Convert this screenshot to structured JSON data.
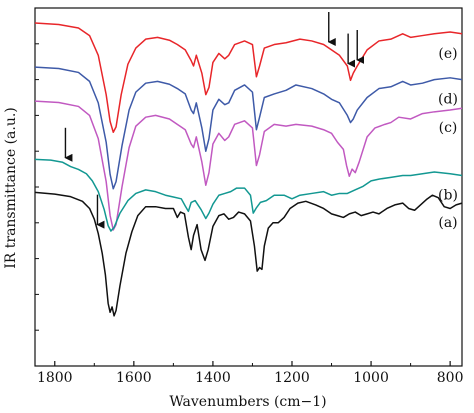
{
  "chart_data": {
    "type": "line",
    "title": "",
    "xlabel": "Wavenumbers (cm−1)",
    "ylabel": "IR transmittance (a.u.)",
    "xlim": [
      1850,
      770
    ],
    "x_reversed": true,
    "ylim": [
      0,
      1
    ],
    "grid": false,
    "xticks": [
      {
        "value": 1800,
        "label": "1800"
      },
      {
        "value": 1600,
        "label": "1600"
      },
      {
        "value": 1400,
        "label": "1400"
      },
      {
        "value": 1200,
        "label": "1200"
      },
      {
        "value": 1000,
        "label": "1000"
      },
      {
        "value": 800,
        "label": "800"
      }
    ],
    "series": [
      {
        "name": "(e)",
        "color": "#e8262a",
        "baseline": 0.958,
        "points": [
          [
            1850,
            0.0
          ],
          [
            1790,
            0.004
          ],
          [
            1740,
            0.014
          ],
          [
            1712,
            0.035
          ],
          [
            1690,
            0.09
          ],
          [
            1670,
            0.2
          ],
          [
            1660,
            0.275
          ],
          [
            1652,
            0.305
          ],
          [
            1645,
            0.29
          ],
          [
            1632,
            0.2
          ],
          [
            1615,
            0.115
          ],
          [
            1595,
            0.07
          ],
          [
            1570,
            0.045
          ],
          [
            1540,
            0.04
          ],
          [
            1510,
            0.048
          ],
          [
            1490,
            0.06
          ],
          [
            1470,
            0.075
          ],
          [
            1455,
            0.105
          ],
          [
            1449,
            0.12
          ],
          [
            1442,
            0.09
          ],
          [
            1428,
            0.14
          ],
          [
            1418,
            0.2
          ],
          [
            1410,
            0.18
          ],
          [
            1400,
            0.11
          ],
          [
            1385,
            0.085
          ],
          [
            1370,
            0.1
          ],
          [
            1360,
            0.09
          ],
          [
            1345,
            0.06
          ],
          [
            1320,
            0.05
          ],
          [
            1300,
            0.06
          ],
          [
            1290,
            0.15
          ],
          [
            1282,
            0.12
          ],
          [
            1270,
            0.07
          ],
          [
            1245,
            0.06
          ],
          [
            1215,
            0.055
          ],
          [
            1180,
            0.045
          ],
          [
            1150,
            0.05
          ],
          [
            1120,
            0.06
          ],
          [
            1100,
            0.075
          ],
          [
            1080,
            0.09
          ],
          [
            1060,
            0.12
          ],
          [
            1052,
            0.16
          ],
          [
            1045,
            0.14
          ],
          [
            1035,
            0.12
          ],
          [
            1010,
            0.075
          ],
          [
            980,
            0.05
          ],
          [
            950,
            0.045
          ],
          [
            920,
            0.03
          ],
          [
            900,
            0.04
          ],
          [
            870,
            0.035
          ],
          [
            840,
            0.03
          ],
          [
            800,
            0.025
          ],
          [
            770,
            0.03
          ]
        ]
      },
      {
        "name": "(d)",
        "color": "#3e5aa8",
        "baseline": 0.835,
        "points": [
          [
            1850,
            0.0
          ],
          [
            1790,
            0.004
          ],
          [
            1740,
            0.015
          ],
          [
            1712,
            0.04
          ],
          [
            1690,
            0.1
          ],
          [
            1670,
            0.21
          ],
          [
            1660,
            0.3
          ],
          [
            1652,
            0.34
          ],
          [
            1645,
            0.32
          ],
          [
            1630,
            0.22
          ],
          [
            1612,
            0.12
          ],
          [
            1595,
            0.07
          ],
          [
            1570,
            0.045
          ],
          [
            1540,
            0.04
          ],
          [
            1510,
            0.048
          ],
          [
            1490,
            0.06
          ],
          [
            1470,
            0.075
          ],
          [
            1455,
            0.12
          ],
          [
            1449,
            0.13
          ],
          [
            1442,
            0.1
          ],
          [
            1428,
            0.17
          ],
          [
            1418,
            0.235
          ],
          [
            1410,
            0.2
          ],
          [
            1400,
            0.12
          ],
          [
            1385,
            0.09
          ],
          [
            1370,
            0.105
          ],
          [
            1360,
            0.1
          ],
          [
            1345,
            0.065
          ],
          [
            1320,
            0.05
          ],
          [
            1300,
            0.07
          ],
          [
            1290,
            0.175
          ],
          [
            1282,
            0.14
          ],
          [
            1270,
            0.085
          ],
          [
            1245,
            0.075
          ],
          [
            1215,
            0.065
          ],
          [
            1190,
            0.05
          ],
          [
            1150,
            0.06
          ],
          [
            1120,
            0.075
          ],
          [
            1100,
            0.09
          ],
          [
            1080,
            0.1
          ],
          [
            1060,
            0.135
          ],
          [
            1052,
            0.155
          ],
          [
            1045,
            0.145
          ],
          [
            1035,
            0.12
          ],
          [
            1010,
            0.085
          ],
          [
            980,
            0.06
          ],
          [
            950,
            0.055
          ],
          [
            920,
            0.04
          ],
          [
            900,
            0.05
          ],
          [
            870,
            0.045
          ],
          [
            840,
            0.035
          ],
          [
            800,
            0.03
          ],
          [
            770,
            0.035
          ]
        ]
      },
      {
        "name": "(c)",
        "color": "#c159c1",
        "baseline": 0.74,
        "points": [
          [
            1850,
            0.0
          ],
          [
            1790,
            0.004
          ],
          [
            1740,
            0.015
          ],
          [
            1712,
            0.04
          ],
          [
            1690,
            0.105
          ],
          [
            1670,
            0.225
          ],
          [
            1660,
            0.32
          ],
          [
            1652,
            0.36
          ],
          [
            1645,
            0.345
          ],
          [
            1630,
            0.24
          ],
          [
            1612,
            0.13
          ],
          [
            1595,
            0.07
          ],
          [
            1570,
            0.045
          ],
          [
            1545,
            0.04
          ],
          [
            1510,
            0.05
          ],
          [
            1490,
            0.065
          ],
          [
            1470,
            0.08
          ],
          [
            1455,
            0.12
          ],
          [
            1449,
            0.13
          ],
          [
            1442,
            0.1
          ],
          [
            1428,
            0.17
          ],
          [
            1418,
            0.235
          ],
          [
            1410,
            0.2
          ],
          [
            1400,
            0.12
          ],
          [
            1385,
            0.09
          ],
          [
            1370,
            0.11
          ],
          [
            1360,
            0.1
          ],
          [
            1345,
            0.065
          ],
          [
            1320,
            0.055
          ],
          [
            1300,
            0.075
          ],
          [
            1290,
            0.18
          ],
          [
            1282,
            0.15
          ],
          [
            1270,
            0.085
          ],
          [
            1245,
            0.065
          ],
          [
            1215,
            0.07
          ],
          [
            1190,
            0.065
          ],
          [
            1150,
            0.07
          ],
          [
            1120,
            0.08
          ],
          [
            1100,
            0.09
          ],
          [
            1085,
            0.115
          ],
          [
            1070,
            0.135
          ],
          [
            1062,
            0.18
          ],
          [
            1055,
            0.21
          ],
          [
            1048,
            0.19
          ],
          [
            1040,
            0.2
          ],
          [
            1030,
            0.17
          ],
          [
            1010,
            0.1
          ],
          [
            990,
            0.075
          ],
          [
            965,
            0.065
          ],
          [
            950,
            0.06
          ],
          [
            930,
            0.045
          ],
          [
            900,
            0.05
          ],
          [
            870,
            0.035
          ],
          [
            840,
            0.03
          ],
          [
            800,
            0.025
          ],
          [
            770,
            0.02
          ]
        ]
      },
      {
        "name": "(b)",
        "color": "#139892",
        "baseline": 0.577,
        "points": [
          [
            1850,
            0.0
          ],
          [
            1810,
            0.002
          ],
          [
            1780,
            0.008
          ],
          [
            1760,
            0.02
          ],
          [
            1740,
            0.028
          ],
          [
            1720,
            0.04
          ],
          [
            1705,
            0.06
          ],
          [
            1690,
            0.09
          ],
          [
            1675,
            0.14
          ],
          [
            1665,
            0.185
          ],
          [
            1658,
            0.2
          ],
          [
            1650,
            0.19
          ],
          [
            1635,
            0.15
          ],
          [
            1615,
            0.115
          ],
          [
            1595,
            0.095
          ],
          [
            1570,
            0.085
          ],
          [
            1545,
            0.09
          ],
          [
            1520,
            0.1
          ],
          [
            1500,
            0.105
          ],
          [
            1480,
            0.11
          ],
          [
            1470,
            0.13
          ],
          [
            1462,
            0.145
          ],
          [
            1455,
            0.12
          ],
          [
            1445,
            0.115
          ],
          [
            1430,
            0.14
          ],
          [
            1418,
            0.165
          ],
          [
            1410,
            0.15
          ],
          [
            1400,
            0.125
          ],
          [
            1385,
            0.1
          ],
          [
            1370,
            0.095
          ],
          [
            1355,
            0.09
          ],
          [
            1340,
            0.08
          ],
          [
            1320,
            0.08
          ],
          [
            1305,
            0.1
          ],
          [
            1298,
            0.15
          ],
          [
            1290,
            0.135
          ],
          [
            1280,
            0.12
          ],
          [
            1265,
            0.115
          ],
          [
            1245,
            0.1
          ],
          [
            1220,
            0.1
          ],
          [
            1200,
            0.11
          ],
          [
            1180,
            0.1
          ],
          [
            1150,
            0.095
          ],
          [
            1120,
            0.09
          ],
          [
            1100,
            0.1
          ],
          [
            1080,
            0.095
          ],
          [
            1060,
            0.095
          ],
          [
            1040,
            0.085
          ],
          [
            1020,
            0.075
          ],
          [
            1000,
            0.06
          ],
          [
            980,
            0.055
          ],
          [
            950,
            0.05
          ],
          [
            920,
            0.045
          ],
          [
            900,
            0.045
          ],
          [
            870,
            0.04
          ],
          [
            840,
            0.035
          ],
          [
            800,
            0.04
          ],
          [
            770,
            0.045
          ]
        ]
      },
      {
        "name": "(a)",
        "color": "#111111",
        "baseline": 0.485,
        "points": [
          [
            1850,
            0.0
          ],
          [
            1800,
            0.005
          ],
          [
            1760,
            0.012
          ],
          [
            1730,
            0.025
          ],
          [
            1712,
            0.045
          ],
          [
            1700,
            0.075
          ],
          [
            1690,
            0.115
          ],
          [
            1680,
            0.17
          ],
          [
            1672,
            0.23
          ],
          [
            1665,
            0.31
          ],
          [
            1660,
            0.335
          ],
          [
            1655,
            0.32
          ],
          [
            1650,
            0.345
          ],
          [
            1645,
            0.33
          ],
          [
            1635,
            0.26
          ],
          [
            1620,
            0.17
          ],
          [
            1605,
            0.11
          ],
          [
            1590,
            0.065
          ],
          [
            1570,
            0.04
          ],
          [
            1545,
            0.04
          ],
          [
            1520,
            0.045
          ],
          [
            1500,
            0.045
          ],
          [
            1490,
            0.07
          ],
          [
            1482,
            0.055
          ],
          [
            1472,
            0.06
          ],
          [
            1462,
            0.125
          ],
          [
            1455,
            0.16
          ],
          [
            1449,
            0.12
          ],
          [
            1440,
            0.09
          ],
          [
            1430,
            0.16
          ],
          [
            1420,
            0.19
          ],
          [
            1412,
            0.16
          ],
          [
            1400,
            0.095
          ],
          [
            1385,
            0.065
          ],
          [
            1372,
            0.06
          ],
          [
            1360,
            0.075
          ],
          [
            1348,
            0.07
          ],
          [
            1335,
            0.055
          ],
          [
            1320,
            0.06
          ],
          [
            1305,
            0.08
          ],
          [
            1295,
            0.15
          ],
          [
            1288,
            0.22
          ],
          [
            1282,
            0.21
          ],
          [
            1276,
            0.215
          ],
          [
            1270,
            0.15
          ],
          [
            1260,
            0.1
          ],
          [
            1248,
            0.085
          ],
          [
            1235,
            0.085
          ],
          [
            1220,
            0.07
          ],
          [
            1205,
            0.045
          ],
          [
            1185,
            0.03
          ],
          [
            1165,
            0.025
          ],
          [
            1140,
            0.035
          ],
          [
            1120,
            0.045
          ],
          [
            1100,
            0.06
          ],
          [
            1085,
            0.065
          ],
          [
            1070,
            0.07
          ],
          [
            1055,
            0.06
          ],
          [
            1040,
            0.055
          ],
          [
            1025,
            0.065
          ],
          [
            1010,
            0.06
          ],
          [
            995,
            0.055
          ],
          [
            980,
            0.06
          ],
          [
            960,
            0.045
          ],
          [
            940,
            0.035
          ],
          [
            920,
            0.03
          ],
          [
            905,
            0.045
          ],
          [
            890,
            0.05
          ],
          [
            875,
            0.035
          ],
          [
            860,
            0.02
          ],
          [
            845,
            0.008
          ],
          [
            830,
            0.015
          ],
          [
            815,
            0.04
          ],
          [
            800,
            0.045
          ],
          [
            785,
            0.035
          ],
          [
            770,
            0.03
          ]
        ]
      }
    ],
    "annotations": [
      {
        "type": "arrow",
        "x": 1773,
        "series": "(b)",
        "direction": "down"
      },
      {
        "type": "arrow",
        "x": 1692,
        "series": "(a)",
        "direction": "down"
      },
      {
        "type": "arrow",
        "x": 1107,
        "series": "(e)",
        "direction": "down"
      },
      {
        "type": "arrow",
        "x": 1058,
        "series": "(e)",
        "direction": "down"
      },
      {
        "type": "arrow",
        "x": 1035,
        "series": "(e)",
        "direction": "down"
      }
    ]
  }
}
